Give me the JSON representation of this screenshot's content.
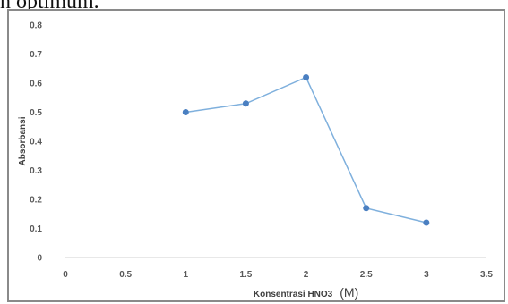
{
  "caption_fragment": "n optimum.",
  "chart_data": {
    "type": "line",
    "xlabel": "Konsentrasi HNO3",
    "xlabel_unit": "(M)",
    "ylabel": "Absorbansi",
    "xlim": [
      0,
      3.5
    ],
    "ylim": [
      0,
      0.8
    ],
    "x_ticks": [
      "0",
      "0.5",
      "1",
      "1.5",
      "2",
      "2.5",
      "3",
      "3.5"
    ],
    "y_ticks": [
      "0",
      "0.1",
      "0.2",
      "0.3",
      "0.4",
      "0.5",
      "0.6",
      "0.7",
      "0.8"
    ],
    "grid": false,
    "series": [
      {
        "x": [
          1,
          1.5,
          2,
          2.5,
          3
        ],
        "y": [
          0.5,
          0.53,
          0.62,
          0.17,
          0.12
        ],
        "color": "#7fb0dd",
        "marker_color": "#4a7fc1"
      }
    ]
  }
}
